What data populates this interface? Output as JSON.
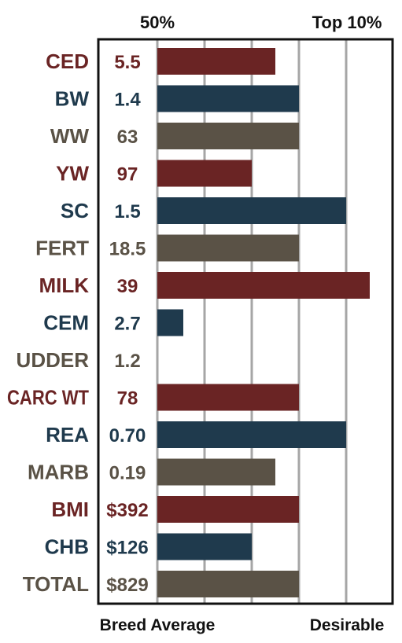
{
  "chart_data": {
    "type": "bar",
    "orientation": "horizontal",
    "top_labels": [
      "50%",
      "Top 10%"
    ],
    "bottom_labels": [
      "Breed Average",
      "Desirable"
    ],
    "xlim": [
      0,
      5
    ],
    "grid": true,
    "colors": {
      "red": "#6a2424",
      "blue": "#1f3a4d",
      "gray": "#5a5246"
    },
    "rows": [
      {
        "trait": "CED",
        "value_label": "5.5",
        "score": 2.5,
        "color": "red"
      },
      {
        "trait": "BW",
        "value_label": "1.4",
        "score": 3.0,
        "color": "blue"
      },
      {
        "trait": "WW",
        "value_label": "63",
        "score": 3.0,
        "color": "gray"
      },
      {
        "trait": "YW",
        "value_label": "97",
        "score": 2.0,
        "color": "red"
      },
      {
        "trait": "SC",
        "value_label": "1.5",
        "score": 4.0,
        "color": "blue"
      },
      {
        "trait": "FERT",
        "value_label": "18.5",
        "score": 3.0,
        "color": "gray"
      },
      {
        "trait": "MILK",
        "value_label": "39",
        "score": 4.5,
        "color": "red"
      },
      {
        "trait": "CEM",
        "value_label": "2.7",
        "score": 0.55,
        "color": "blue"
      },
      {
        "trait": "UDDER",
        "value_label": "1.2",
        "score": 0,
        "color": "gray"
      },
      {
        "trait": "CARC WT",
        "value_label": "78",
        "score": 3.0,
        "color": "red"
      },
      {
        "trait": "REA",
        "value_label": "0.70",
        "score": 4.0,
        "color": "blue"
      },
      {
        "trait": "MARB",
        "value_label": "0.19",
        "score": 2.5,
        "color": "gray"
      },
      {
        "trait": "BMI",
        "value_label": "$392",
        "score": 3.0,
        "color": "red"
      },
      {
        "trait": "CHB",
        "value_label": "$126",
        "score": 2.0,
        "color": "blue"
      },
      {
        "trait": "TOTAL",
        "value_label": "$829",
        "score": 3.0,
        "color": "gray"
      }
    ]
  }
}
